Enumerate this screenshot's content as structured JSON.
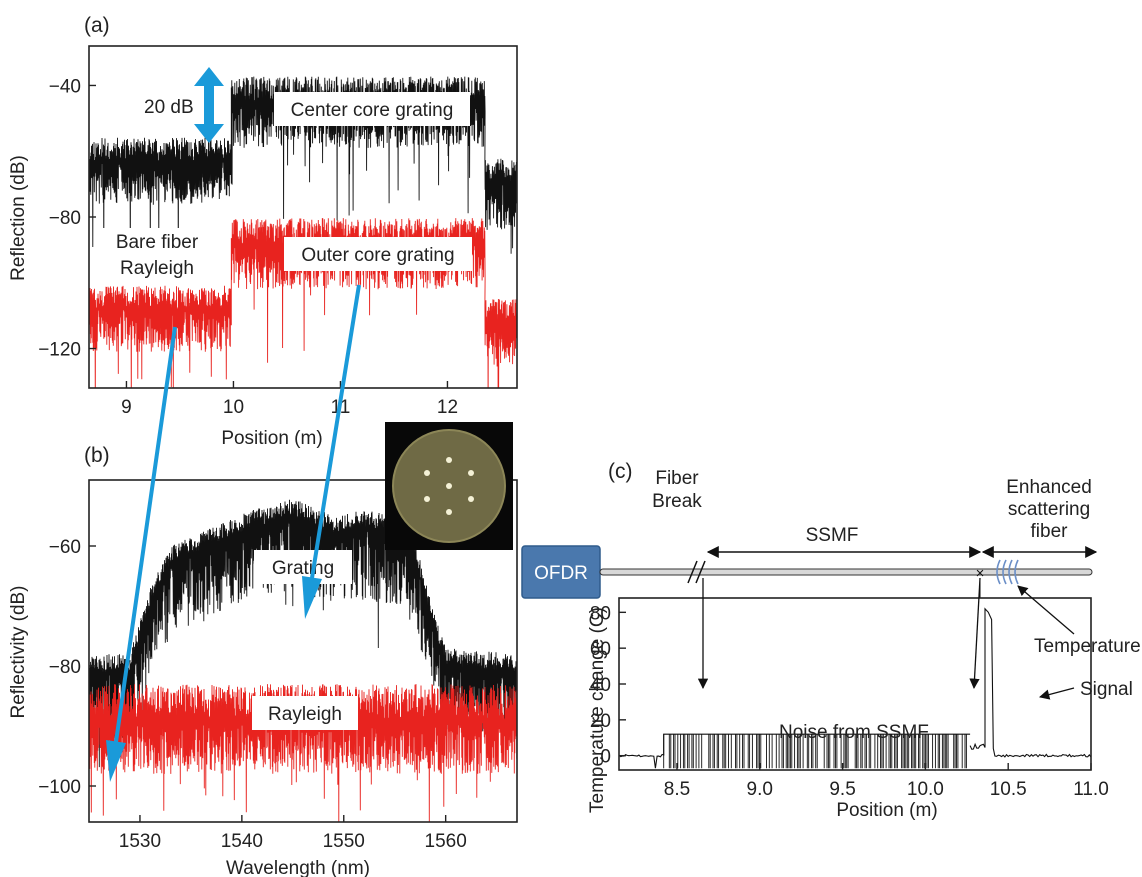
{
  "chart_data": [
    {
      "panel": "(a)",
      "type": "line",
      "xlabel": "Position  (m)",
      "ylabel": "Reflection  (dB)",
      "xlim": [
        8.65,
        12.65
      ],
      "ylim": [
        -132,
        -28
      ],
      "xticks": [
        9,
        10,
        11,
        12
      ],
      "yticks": [
        -120,
        -80,
        -40
      ],
      "series": [
        {
          "name": "Center core grating",
          "color": "#111111",
          "segments": [
            {
              "x": [
                8.65,
                9.98
              ],
              "mean": -63,
              "noise": 13
            },
            {
              "x": [
                9.98,
                12.35
              ],
              "mean": -45,
              "noise": 14
            },
            {
              "x": [
                12.35,
                12.65
              ],
              "mean": -70,
              "noise": 14
            }
          ]
        },
        {
          "name": "Outer core grating",
          "color": "#e8231f",
          "segments": [
            {
              "x": [
                8.65,
                9.98
              ],
              "mean": -108,
              "noise": 13
            },
            {
              "x": [
                9.98,
                12.35
              ],
              "mean": -88,
              "noise": 14
            },
            {
              "x": [
                12.35,
                12.65
              ],
              "mean": -112,
              "noise": 13
            }
          ]
        }
      ],
      "annotations": {
        "step": "20 dB",
        "center": "Center core grating",
        "outer": "Outer core grating",
        "bare_line1": "Bare fiber",
        "bare_line2": "Rayleigh"
      }
    },
    {
      "panel": "(b)",
      "type": "line",
      "xlabel": "Wavelength  (nm)",
      "ylabel": "Reflectivity  (dB)",
      "xlim": [
        1525,
        1567
      ],
      "ylim": [
        -106,
        -49
      ],
      "xticks": [
        1530,
        1540,
        1550,
        1560
      ],
      "yticks": [
        -100,
        -80,
        -60
      ],
      "series": [
        {
          "name": "Grating",
          "color": "#111111",
          "profile": [
            [
              1525,
              -81
            ],
            [
              1529,
              -81
            ],
            [
              1531,
              -70
            ],
            [
              1533,
              -63
            ],
            [
              1537,
              -60
            ],
            [
              1541,
              -57
            ],
            [
              1545,
              -55
            ],
            [
              1549,
              -58
            ],
            [
              1552,
              -57
            ],
            [
              1555,
              -58
            ],
            [
              1557,
              -62
            ],
            [
              1558.5,
              -72
            ],
            [
              1560,
              -80
            ],
            [
              1567,
              -81
            ]
          ]
        },
        {
          "name": "Rayleigh",
          "color": "#e8231f",
          "mean": -89
        }
      ],
      "annotations": {
        "grating": "Grating",
        "rayleigh": "Rayleigh"
      }
    },
    {
      "panel": "(c)",
      "type": "line",
      "xlabel": "Position  (m)",
      "ylabel": "Temperature change (C)",
      "xlim": [
        8.15,
        11.0
      ],
      "ylim": [
        -8,
        88
      ],
      "xticks": [
        8.5,
        9.0,
        9.5,
        10.0,
        10.5,
        11.0
      ],
      "yticks": [
        0,
        20,
        40,
        60,
        80
      ],
      "series": [
        {
          "name": "Temperature",
          "color": "#111111",
          "noise_band": [
            8.42,
            10.27
          ],
          "noise_range": [
            -7,
            12
          ],
          "peak": {
            "x": [
              10.36,
              10.4
            ],
            "value": 82
          },
          "baseline": 0
        }
      ],
      "annotations": {
        "ofdr": "OFDR",
        "fiber_break_1": "Fiber",
        "fiber_break_2": "Break",
        "ssmf": "SSMF",
        "enhanced_1": "Enhanced",
        "enhanced_2": "scattering",
        "enhanced_3": "fiber",
        "temperature": "Temperature",
        "signal": "Signal",
        "noise": "Noise from SSMF"
      }
    }
  ]
}
